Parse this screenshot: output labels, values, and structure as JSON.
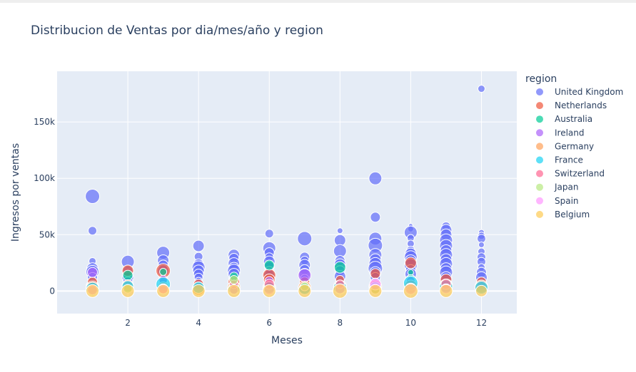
{
  "chart_data": {
    "type": "scatter",
    "title": "Distribucion de Ventas por dia/mes/año y region",
    "xlabel": "Meses",
    "ylabel": "Ingresos por ventas",
    "xlim": [
      0,
      13
    ],
    "ylim": [
      -20000,
      195000
    ],
    "x_ticks": [
      2,
      4,
      6,
      8,
      10,
      12
    ],
    "y_ticks": [
      0,
      50000,
      100000,
      150000
    ],
    "y_tick_labels": [
      "0",
      "50k",
      "100k",
      "150k"
    ],
    "grid": true,
    "plot_background": "#e5ecf6",
    "legend_title": "region",
    "legend_position": "right",
    "series": [
      {
        "name": "United Kingdom",
        "color": "#636efa",
        "points": [
          [
            1,
            84000,
            10
          ],
          [
            1,
            53500,
            6
          ],
          [
            1,
            26500,
            5
          ],
          [
            1,
            20000,
            8
          ],
          [
            1,
            17000,
            9
          ],
          [
            1,
            12000,
            7
          ],
          [
            1,
            8000,
            6
          ],
          [
            1,
            4000,
            9
          ],
          [
            2,
            26000,
            9
          ],
          [
            2,
            18000,
            7
          ],
          [
            2,
            12000,
            8
          ],
          [
            2,
            8000,
            7
          ],
          [
            2,
            3000,
            6
          ],
          [
            3,
            34000,
            9
          ],
          [
            3,
            27000,
            8
          ],
          [
            3,
            23000,
            7
          ],
          [
            3,
            18000,
            8
          ],
          [
            3,
            11000,
            6
          ],
          [
            3,
            6000,
            7
          ],
          [
            4,
            40000,
            8
          ],
          [
            4,
            30500,
            6
          ],
          [
            4,
            24000,
            7
          ],
          [
            4,
            21000,
            9
          ],
          [
            4,
            18000,
            8
          ],
          [
            4,
            15000,
            7
          ],
          [
            4,
            12000,
            6
          ],
          [
            4,
            9000,
            5
          ],
          [
            5,
            32000,
            8
          ],
          [
            5,
            29000,
            7
          ],
          [
            5,
            24500,
            8
          ],
          [
            5,
            21000,
            7
          ],
          [
            5,
            18000,
            9
          ],
          [
            5,
            15000,
            8
          ],
          [
            5,
            11000,
            7
          ],
          [
            5,
            8000,
            6
          ],
          [
            6,
            51000,
            6
          ],
          [
            6,
            38000,
            9
          ],
          [
            6,
            34000,
            7
          ],
          [
            6,
            30000,
            6
          ],
          [
            6,
            26000,
            8
          ],
          [
            6,
            22000,
            7
          ],
          [
            6,
            18000,
            6
          ],
          [
            6,
            14000,
            8
          ],
          [
            7,
            46500,
            10
          ],
          [
            7,
            30000,
            7
          ],
          [
            7,
            27000,
            6
          ],
          [
            7,
            23000,
            8
          ],
          [
            7,
            19000,
            7
          ],
          [
            7,
            15000,
            8
          ],
          [
            7,
            11000,
            6
          ],
          [
            8,
            53500,
            4
          ],
          [
            8,
            45000,
            8
          ],
          [
            8,
            35500,
            9
          ],
          [
            8,
            27000,
            7
          ],
          [
            8,
            23500,
            8
          ],
          [
            8,
            18000,
            7
          ],
          [
            8,
            13000,
            8
          ],
          [
            9,
            100000,
            9
          ],
          [
            9,
            65500,
            7
          ],
          [
            9,
            46500,
            9
          ],
          [
            9,
            40500,
            10
          ],
          [
            9,
            32000,
            9
          ],
          [
            9,
            28000,
            8
          ],
          [
            9,
            24000,
            9
          ],
          [
            9,
            20000,
            10
          ],
          [
            9,
            16500,
            8
          ],
          [
            9,
            12000,
            7
          ],
          [
            10,
            58000,
            3
          ],
          [
            10,
            55000,
            4
          ],
          [
            10,
            52000,
            9
          ],
          [
            10,
            47000,
            5
          ],
          [
            10,
            42000,
            5
          ],
          [
            10,
            36000,
            6
          ],
          [
            10,
            33000,
            8
          ],
          [
            10,
            30000,
            9
          ],
          [
            10,
            27000,
            8
          ],
          [
            10,
            23000,
            9
          ],
          [
            10,
            19000,
            7
          ],
          [
            10,
            15000,
            8
          ],
          [
            11,
            57500,
            6
          ],
          [
            11,
            54000,
            8
          ],
          [
            11,
            50000,
            8
          ],
          [
            11,
            45000,
            9
          ],
          [
            11,
            40000,
            9
          ],
          [
            11,
            36000,
            8
          ],
          [
            11,
            32000,
            9
          ],
          [
            11,
            28000,
            8
          ],
          [
            11,
            24000,
            9
          ],
          [
            11,
            20000,
            8
          ],
          [
            11,
            16500,
            9
          ],
          [
            11,
            12000,
            8
          ],
          [
            12,
            179500,
            5
          ],
          [
            12,
            52000,
            4
          ],
          [
            12,
            49000,
            5
          ],
          [
            12,
            46500,
            6
          ],
          [
            12,
            41000,
            4
          ],
          [
            12,
            35000,
            5
          ],
          [
            12,
            30000,
            6
          ],
          [
            12,
            26000,
            6
          ],
          [
            12,
            21000,
            5
          ],
          [
            12,
            16500,
            7
          ],
          [
            12,
            12000,
            8
          ]
        ]
      },
      {
        "name": "Netherlands",
        "color": "#ef553b",
        "points": [
          [
            1,
            8000,
            7
          ],
          [
            2,
            18000,
            8
          ],
          [
            3,
            18000,
            10
          ],
          [
            4,
            6000,
            7
          ],
          [
            5,
            8000,
            8
          ],
          [
            6,
            14000,
            9
          ],
          [
            6,
            10000,
            8
          ],
          [
            7,
            8000,
            7
          ],
          [
            8,
            10000,
            6
          ],
          [
            9,
            15500,
            7
          ],
          [
            10,
            25000,
            8
          ],
          [
            11,
            10000,
            8
          ],
          [
            12,
            8000,
            7
          ]
        ]
      },
      {
        "name": "Australia",
        "color": "#00cc96",
        "points": [
          [
            2,
            14000,
            7
          ],
          [
            3,
            17000,
            5
          ],
          [
            3,
            8000,
            6
          ],
          [
            5,
            13000,
            6
          ],
          [
            6,
            23000,
            7
          ],
          [
            8,
            21000,
            8
          ],
          [
            10,
            16500,
            4
          ],
          [
            10,
            10000,
            7
          ],
          [
            11,
            6000,
            6
          ]
        ]
      },
      {
        "name": "Ireland",
        "color": "#ab63fa",
        "points": [
          [
            1,
            16500,
            7
          ],
          [
            3,
            10000,
            6
          ],
          [
            4,
            4000,
            6
          ],
          [
            5,
            4000,
            6
          ],
          [
            6,
            9000,
            6
          ],
          [
            7,
            14000,
            9
          ],
          [
            8,
            6000,
            6
          ],
          [
            9,
            7000,
            7
          ],
          [
            10,
            9000,
            6
          ],
          [
            11,
            5000,
            6
          ],
          [
            12,
            5000,
            6
          ]
        ]
      },
      {
        "name": "Germany",
        "color": "#ffa15a",
        "points": [
          [
            1,
            3000,
            9
          ],
          [
            2,
            5000,
            8
          ],
          [
            3,
            3000,
            8
          ],
          [
            4,
            2000,
            9
          ],
          [
            5,
            3000,
            9
          ],
          [
            6,
            3000,
            9
          ],
          [
            7,
            3000,
            9
          ],
          [
            8,
            4000,
            9
          ],
          [
            9,
            4000,
            9
          ],
          [
            10,
            4000,
            9
          ],
          [
            11,
            5000,
            9
          ],
          [
            12,
            4000,
            9
          ]
        ]
      },
      {
        "name": "France",
        "color": "#19d3f3",
        "points": [
          [
            1,
            2000,
            9
          ],
          [
            2,
            4000,
            8
          ],
          [
            3,
            6000,
            10
          ],
          [
            4,
            3000,
            8
          ],
          [
            5,
            2000,
            8
          ],
          [
            6,
            3000,
            8
          ],
          [
            7,
            2000,
            8
          ],
          [
            8,
            3000,
            9
          ],
          [
            9,
            3000,
            8
          ],
          [
            10,
            7000,
            10
          ],
          [
            11,
            4000,
            9
          ],
          [
            12,
            3000,
            9
          ]
        ]
      },
      {
        "name": "Switzerland",
        "color": "#ff6692",
        "points": [
          [
            1,
            1000,
            6
          ],
          [
            3,
            1000,
            6
          ],
          [
            5,
            6000,
            6
          ],
          [
            6,
            6000,
            7
          ],
          [
            8,
            6000,
            6
          ],
          [
            9,
            2000,
            7
          ],
          [
            11,
            6000,
            7
          ]
        ]
      },
      {
        "name": "Japan",
        "color": "#b6e880",
        "points": [
          [
            1,
            0,
            7
          ],
          [
            2,
            2000,
            6
          ],
          [
            5,
            10000,
            6
          ],
          [
            7,
            4000,
            6
          ],
          [
            9,
            1000,
            6
          ],
          [
            10,
            1000,
            6
          ]
        ]
      },
      {
        "name": "Spain",
        "color": "#ff97ff",
        "points": [
          [
            1,
            1000,
            7
          ],
          [
            3,
            2000,
            7
          ],
          [
            5,
            1000,
            6
          ],
          [
            6,
            1000,
            7
          ],
          [
            8,
            2000,
            7
          ],
          [
            9,
            6000,
            8
          ],
          [
            10,
            2000,
            8
          ],
          [
            11,
            2000,
            7
          ]
        ]
      },
      {
        "name": "Belgium",
        "color": "#fecb52",
        "points": [
          [
            1,
            0,
            9
          ],
          [
            2,
            0,
            9
          ],
          [
            3,
            0,
            9
          ],
          [
            4,
            0,
            9
          ],
          [
            5,
            0,
            9
          ],
          [
            6,
            0,
            9
          ],
          [
            7,
            0,
            9
          ],
          [
            8,
            0,
            10
          ],
          [
            9,
            0,
            9
          ],
          [
            10,
            0,
            10
          ],
          [
            11,
            0,
            9
          ],
          [
            12,
            0,
            8
          ]
        ]
      }
    ]
  }
}
